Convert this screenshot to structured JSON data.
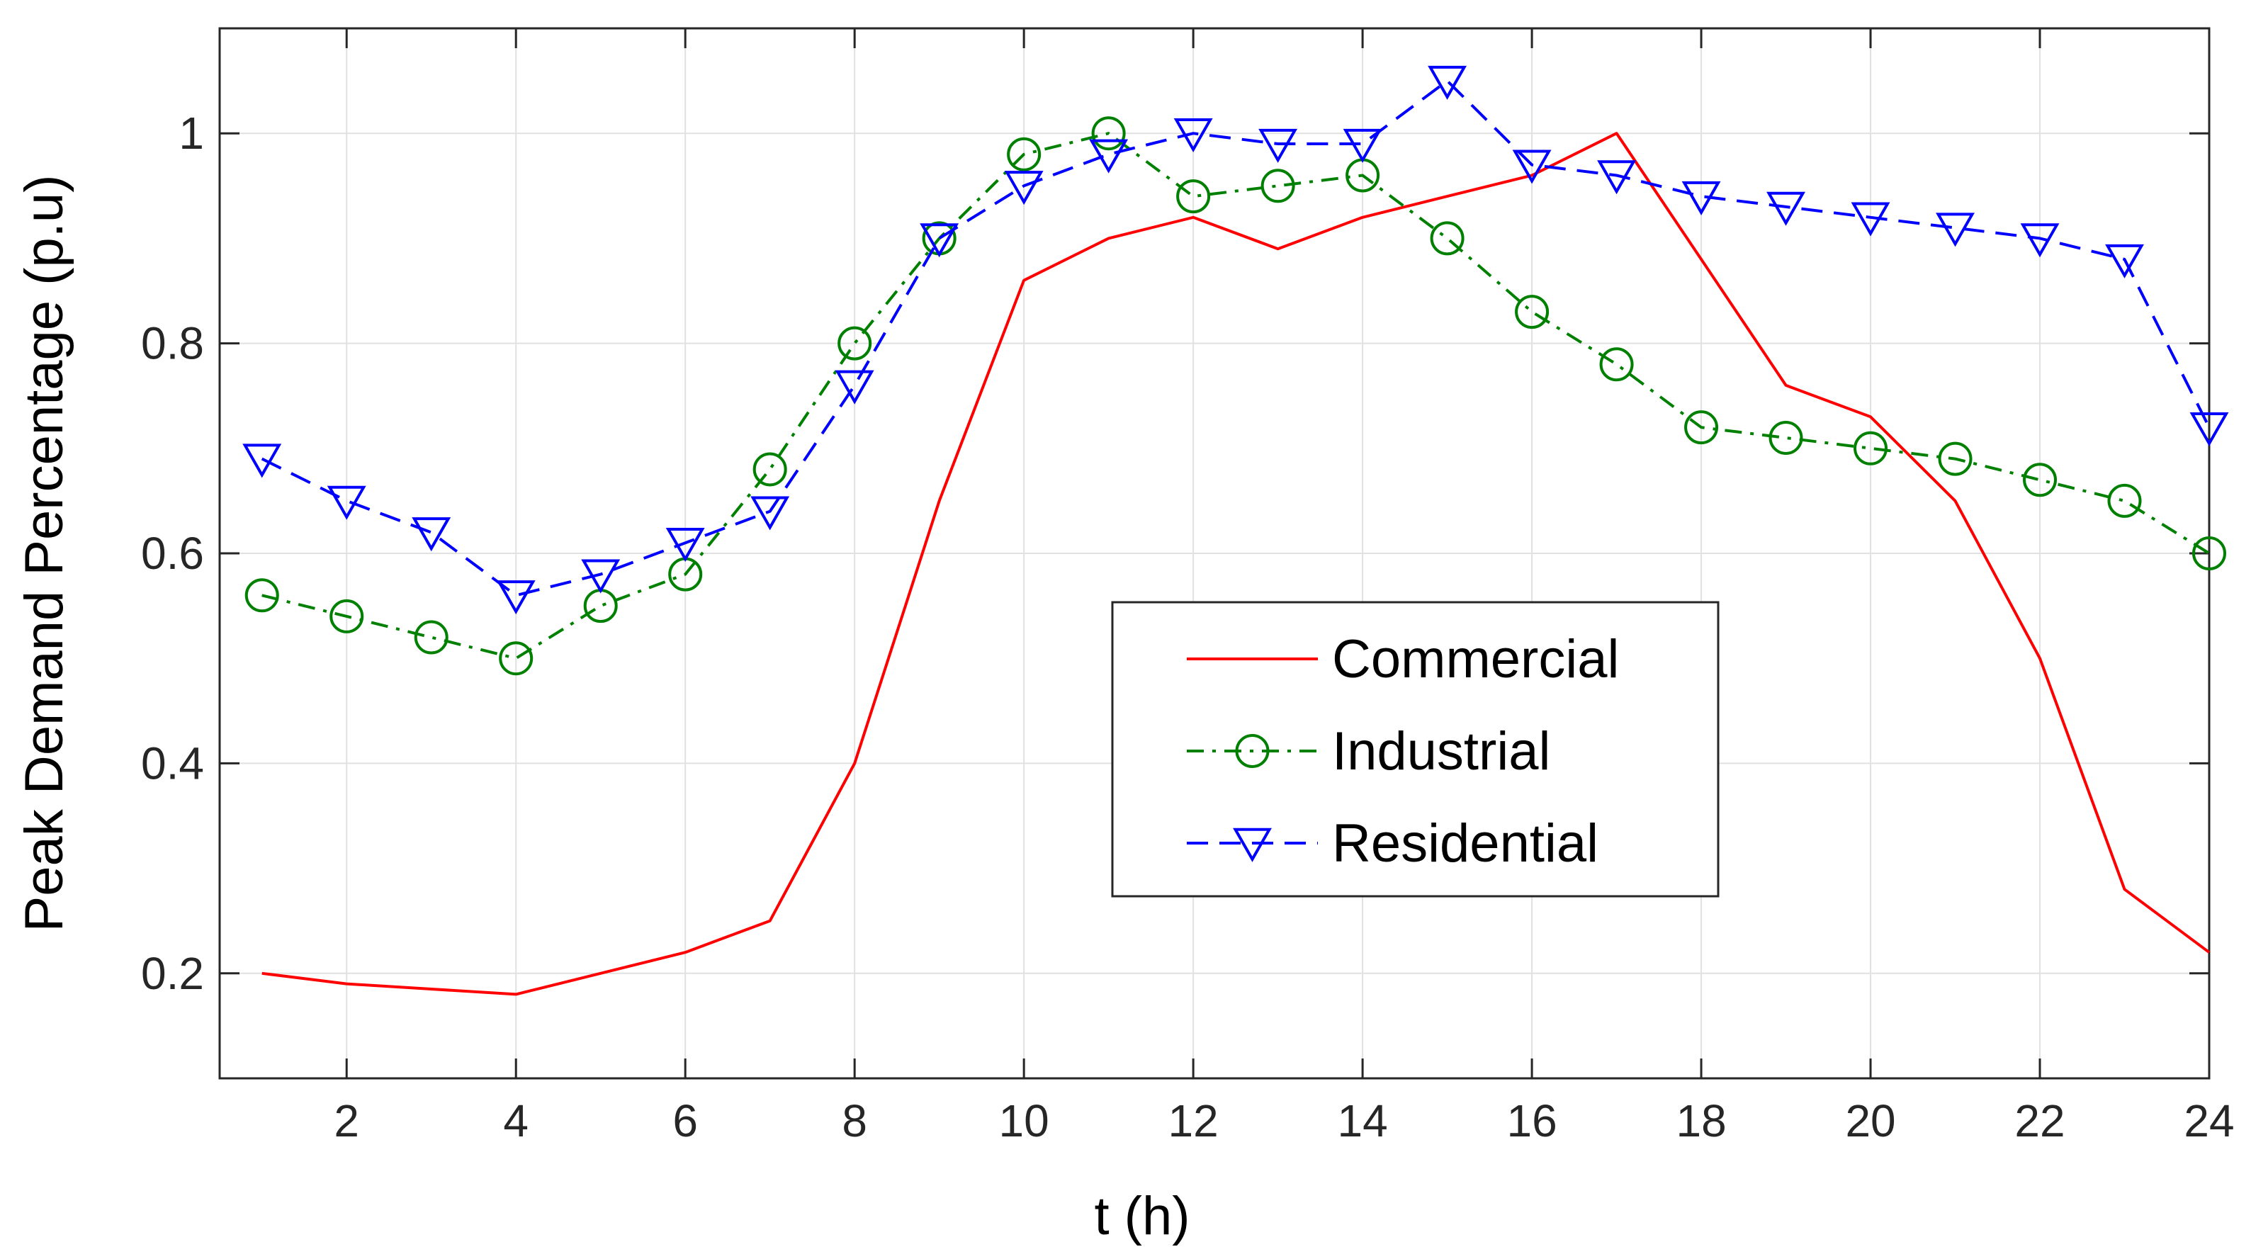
{
  "chart_data": {
    "type": "line",
    "title": "",
    "xlabel": "t (h)",
    "ylabel": "Peak Demand Percentage (p.u)",
    "xlim": [
      0.5,
      24
    ],
    "ylim": [
      0.1,
      1.1
    ],
    "grid": true,
    "legend_position": "center-right",
    "x": [
      1,
      2,
      3,
      4,
      5,
      6,
      7,
      8,
      9,
      10,
      11,
      12,
      13,
      14,
      15,
      16,
      17,
      18,
      19,
      20,
      21,
      22,
      23,
      24
    ],
    "x_ticks": [
      2,
      4,
      6,
      8,
      10,
      12,
      14,
      16,
      18,
      20,
      22,
      24
    ],
    "x_tick_labels": [
      "2",
      "4",
      "6",
      "8",
      "10",
      "12",
      "14",
      "16",
      "18",
      "20",
      "22",
      "24"
    ],
    "y_ticks": [
      0.2,
      0.4,
      0.6,
      0.8,
      1.0
    ],
    "y_tick_labels": [
      "0.2",
      "0.4",
      "0.6",
      "0.8",
      "1"
    ],
    "series": [
      {
        "name": "Commercial",
        "color": "#ff0000",
        "line_style": "solid",
        "marker": "none",
        "values": [
          0.2,
          0.19,
          0.185,
          0.18,
          0.2,
          0.22,
          0.25,
          0.4,
          0.65,
          0.86,
          0.9,
          0.92,
          0.89,
          0.92,
          0.94,
          0.96,
          1.0,
          0.88,
          0.76,
          0.73,
          0.65,
          0.5,
          0.28,
          0.22
        ]
      },
      {
        "name": "Industrial",
        "color": "#008000",
        "line_style": "dash-dot",
        "marker": "circle",
        "values": [
          0.56,
          0.54,
          0.52,
          0.5,
          0.55,
          0.58,
          0.68,
          0.8,
          0.9,
          0.98,
          1.0,
          0.94,
          0.95,
          0.96,
          0.9,
          0.83,
          0.78,
          0.72,
          0.71,
          0.7,
          0.69,
          0.67,
          0.65,
          0.6
        ]
      },
      {
        "name": "Residential",
        "color": "#0000ff",
        "line_style": "dashed",
        "marker": "triangle-down",
        "values": [
          0.69,
          0.65,
          0.62,
          0.56,
          0.58,
          0.61,
          0.64,
          0.76,
          0.9,
          0.95,
          0.98,
          1.0,
          0.99,
          0.99,
          1.05,
          0.97,
          0.96,
          0.94,
          0.93,
          0.92,
          0.91,
          0.9,
          0.88,
          0.72
        ]
      }
    ]
  }
}
